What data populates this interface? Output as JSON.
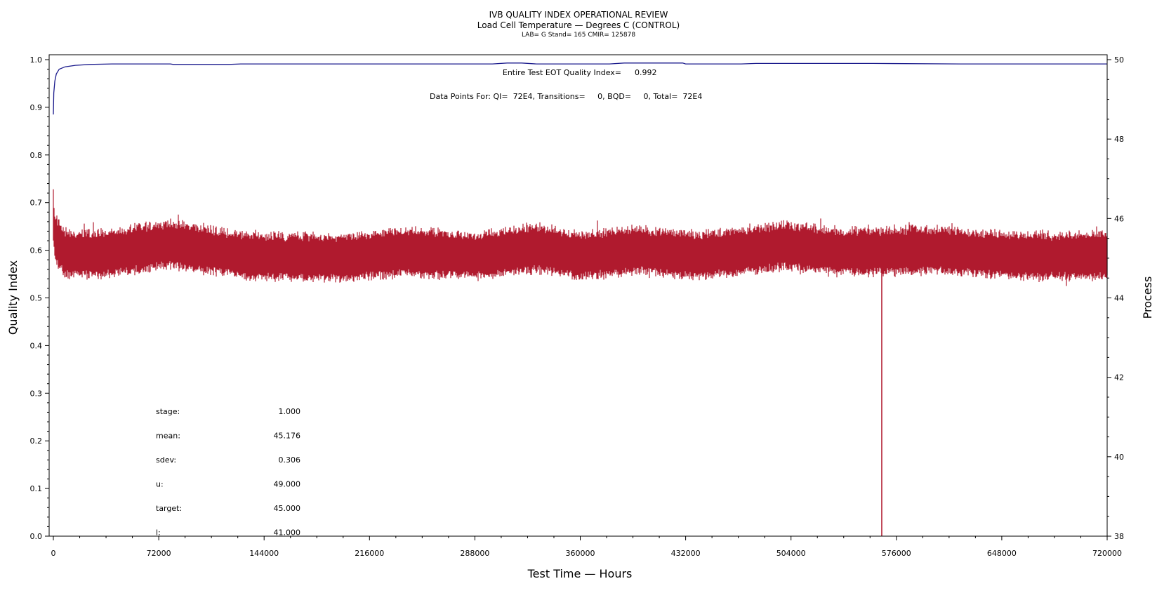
{
  "chart_data": {
    "type": "line",
    "title": "IVB QUALITY INDEX OPERATIONAL REVIEW",
    "subtitle": "Load Cell Temperature — Degrees C (CONTROL)",
    "subtitle2": "LAB= G Stand= 165 CMIR= 125878",
    "xlabel": "Test Time — Hours",
    "ylabel": "Quality Index",
    "y2label": "Process",
    "xlim": [
      0,
      720000
    ],
    "ylim": [
      0,
      1.0
    ],
    "y2lim": [
      38,
      50
    ],
    "grid": false,
    "x_ticks": [
      "0",
      "72000",
      "144000",
      "216000",
      "288000",
      "360000",
      "432000",
      "504000",
      "576000",
      "648000",
      "720000"
    ],
    "y_ticks": [
      "0.0",
      "0.1",
      "0.2",
      "0.3",
      "0.4",
      "0.5",
      "0.6",
      "0.7",
      "0.8",
      "0.9",
      "1.0"
    ],
    "y2_ticks": [
      "38",
      "40",
      "42",
      "44",
      "46",
      "48",
      "50"
    ],
    "series": [
      {
        "color": "#1a1a8c",
        "axis": "left",
        "x": [
          0,
          300,
          1000,
          2000,
          4000,
          8000,
          15000,
          25000,
          40000,
          80000,
          82000,
          120000,
          128000,
          200000,
          300000,
          310000,
          320000,
          330000,
          380000,
          390000,
          430000,
          432000,
          470000,
          480000,
          560000,
          620000,
          720000
        ],
        "y": [
          0.885,
          0.93,
          0.955,
          0.97,
          0.98,
          0.985,
          0.988,
          0.99,
          0.991,
          0.991,
          0.99,
          0.99,
          0.991,
          0.991,
          0.991,
          0.993,
          0.993,
          0.991,
          0.991,
          0.993,
          0.993,
          0.991,
          0.991,
          0.992,
          0.992,
          0.991,
          0.991
        ]
      },
      {
        "color": "#b01a2e",
        "axis": "right",
        "x": [
          0,
          1000,
          8000,
          36000,
          80000,
          130000,
          200000,
          240000,
          290000,
          330000,
          360000,
          400000,
          440000,
          500000,
          540000,
          600000,
          660000,
          720000
        ],
        "y": [
          46.0,
          45.5,
          45.1,
          45.1,
          45.35,
          45.05,
          45.0,
          45.15,
          45.05,
          45.25,
          45.05,
          45.2,
          45.05,
          45.3,
          45.15,
          45.2,
          45.05,
          45.05
        ],
        "band": 0.48,
        "dip": {
          "x": 566000,
          "y": 38.0
        }
      }
    ],
    "annotations": {
      "qi_label": "Entire Test EOT Quality Index=",
      "qi_value": "0.992",
      "points_line": "Data Points For: QI=  72E4, Transitions=     0, BQD=     0, Total=  72E4"
    },
    "stats": [
      {
        "label": "stage:",
        "value": "1.000"
      },
      {
        "label": "mean:",
        "value": "45.176"
      },
      {
        "label": "sdev:",
        "value": "0.306"
      },
      {
        "label": "u:",
        "value": "49.000"
      },
      {
        "label": "target:",
        "value": "45.000"
      },
      {
        "label": "l:",
        "value": "41.000"
      }
    ]
  }
}
